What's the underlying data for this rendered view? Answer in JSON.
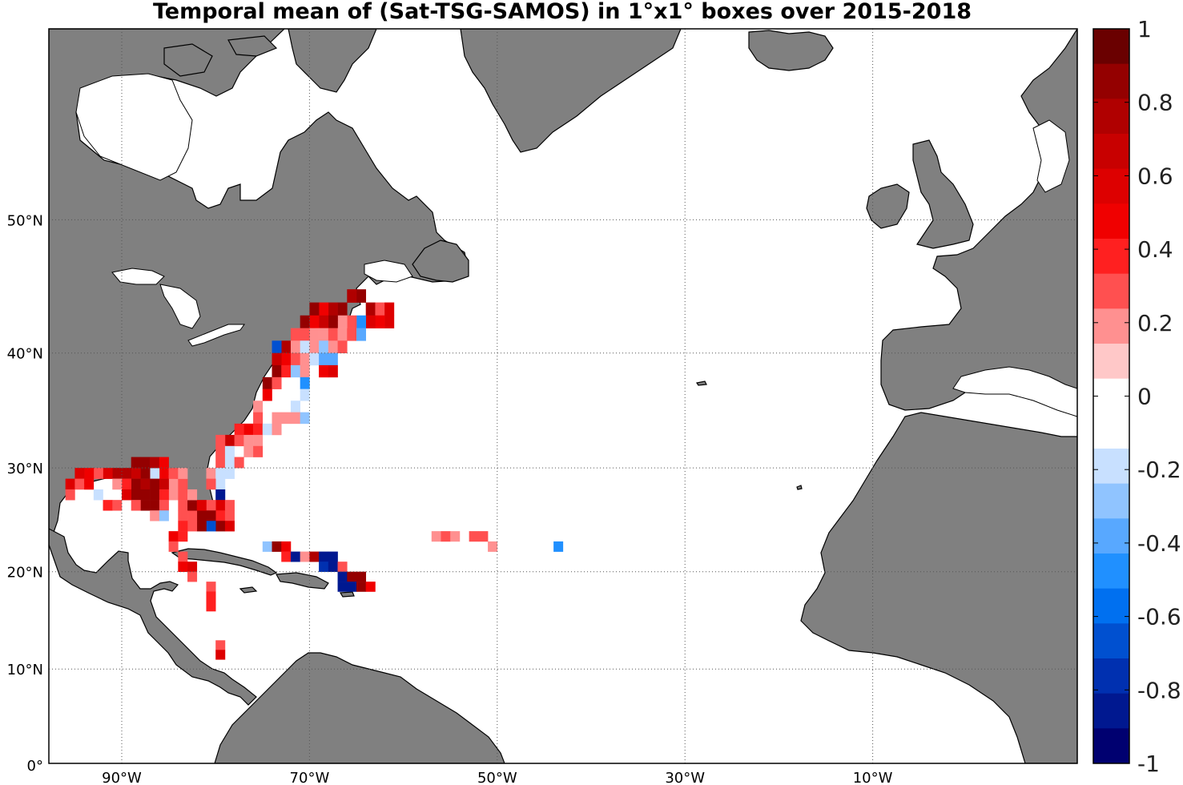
{
  "title": "Temporal mean of (Sat-TSG-SAMOS) in 1°x1° boxes over 2015-2018",
  "colors": {
    "land": "#808080",
    "ocean": "#ffffff",
    "grid": "#555555",
    "coast": "#000000"
  },
  "lon_ticks": [
    {
      "deg": -90,
      "text": "90°W"
    },
    {
      "deg": -70,
      "text": "70°W"
    },
    {
      "deg": -50,
      "text": "50°W"
    },
    {
      "deg": -30,
      "text": "30°W"
    },
    {
      "deg": -10,
      "text": "10°W"
    }
  ],
  "lat_ticks": [
    {
      "deg": 0,
      "text": "0°"
    },
    {
      "deg": 10,
      "text": "10°N"
    },
    {
      "deg": 20,
      "text": "20°N"
    },
    {
      "deg": 30,
      "text": "30°N"
    },
    {
      "deg": 40,
      "text": "40°N"
    },
    {
      "deg": 50,
      "text": "50°N"
    }
  ],
  "colorbar": {
    "min": -1,
    "max": 1,
    "tick_labels": [
      "1",
      "0.8",
      "0.6",
      "0.4",
      "0.2",
      "0",
      "-0.2",
      "-0.4",
      "-0.6",
      "-0.8",
      "-1"
    ],
    "colors_top_to_bottom": [
      "#6a0000",
      "#940000",
      "#b00000",
      "#c80000",
      "#dd0000",
      "#f00000",
      "#ff2020",
      "#ff5050",
      "#ff9090",
      "#ffc8c8",
      "#ffffff",
      "#ffffff",
      "#c8e0ff",
      "#90c4ff",
      "#58a8ff",
      "#2090ff",
      "#0070f0",
      "#0050d0",
      "#0030b0",
      "#001890",
      "#000070"
    ]
  },
  "map_data": {
    "description": "North Atlantic, ~98W to 0E, 0N to ~62N",
    "cells": [
      {
        "lon": -65,
        "lat": 44,
        "v": 0.9
      },
      {
        "lon": -66,
        "lat": 44,
        "v": 0.8
      },
      {
        "lon": -67,
        "lat": 43,
        "v": 0.9
      },
      {
        "lon": -68,
        "lat": 43,
        "v": 0.8
      },
      {
        "lon": -69,
        "lat": 43,
        "v": 0.5
      },
      {
        "lon": -70,
        "lat": 43,
        "v": 0.9
      },
      {
        "lon": -64,
        "lat": 43,
        "v": 0.8
      },
      {
        "lon": -63,
        "lat": 43,
        "v": 0.3
      },
      {
        "lon": -62,
        "lat": 43,
        "v": 0.6
      },
      {
        "lon": -62,
        "lat": 42,
        "v": 0.6
      },
      {
        "lon": -63,
        "lat": 42,
        "v": 0.5
      },
      {
        "lon": -64,
        "lat": 42,
        "v": 0.6
      },
      {
        "lon": -65,
        "lat": 42,
        "v": -0.5
      },
      {
        "lon": -66,
        "lat": 42,
        "v": 0.3
      },
      {
        "lon": -67,
        "lat": 42,
        "v": 0.2
      },
      {
        "lon": -68,
        "lat": 42,
        "v": 0.9
      },
      {
        "lon": -69,
        "lat": 42,
        "v": 0.7
      },
      {
        "lon": -70,
        "lat": 42,
        "v": 0.5
      },
      {
        "lon": -71,
        "lat": 42,
        "v": 0.9
      },
      {
        "lon": -70,
        "lat": 41,
        "v": 0.2
      },
      {
        "lon": -69,
        "lat": 41,
        "v": 0.2
      },
      {
        "lon": -68,
        "lat": 41,
        "v": 0.3
      },
      {
        "lon": -67,
        "lat": 41,
        "v": 0.2
      },
      {
        "lon": -66,
        "lat": 41,
        "v": 0.3
      },
      {
        "lon": -65,
        "lat": 41,
        "v": -0.4
      },
      {
        "lon": -71,
        "lat": 41,
        "v": 0.3
      },
      {
        "lon": -72,
        "lat": 41,
        "v": 0.3
      },
      {
        "lon": -73,
        "lat": 40,
        "v": 0.8
      },
      {
        "lon": -72,
        "lat": 40,
        "v": 0.2
      },
      {
        "lon": -71,
        "lat": 40,
        "v": -0.2
      },
      {
        "lon": -70,
        "lat": 40,
        "v": 0.2
      },
      {
        "lon": -69,
        "lat": 40,
        "v": -0.3
      },
      {
        "lon": -68,
        "lat": 40,
        "v": 0.2
      },
      {
        "lon": -67,
        "lat": 40,
        "v": 0.3
      },
      {
        "lon": -74,
        "lat": 40,
        "v": -0.7
      },
      {
        "lon": -73,
        "lat": 39,
        "v": 0.5
      },
      {
        "lon": -72,
        "lat": 39,
        "v": 0.3
      },
      {
        "lon": -71,
        "lat": 39,
        "v": 0.2
      },
      {
        "lon": -70,
        "lat": 39,
        "v": -0.2
      },
      {
        "lon": -69,
        "lat": 39,
        "v": -0.4
      },
      {
        "lon": -68,
        "lat": 39,
        "v": -0.4
      },
      {
        "lon": -74,
        "lat": 39,
        "v": 0.7
      },
      {
        "lon": -74,
        "lat": 38,
        "v": 0.9
      },
      {
        "lon": -73,
        "lat": 38,
        "v": 0.4
      },
      {
        "lon": -72,
        "lat": 38,
        "v": -0.3
      },
      {
        "lon": -71,
        "lat": 38,
        "v": 0.2
      },
      {
        "lon": -69,
        "lat": 38,
        "v": 0.5
      },
      {
        "lon": -68,
        "lat": 38,
        "v": 0.6
      },
      {
        "lon": -75,
        "lat": 37,
        "v": 0.9
      },
      {
        "lon": -74,
        "lat": 37,
        "v": 0.3
      },
      {
        "lon": -71,
        "lat": 37,
        "v": -0.5
      },
      {
        "lon": -75,
        "lat": 36,
        "v": 0.5
      },
      {
        "lon": -71,
        "lat": 36,
        "v": -0.2
      },
      {
        "lon": -76,
        "lat": 35,
        "v": 0.2
      },
      {
        "lon": -72,
        "lat": 35,
        "v": -0.2
      },
      {
        "lon": -76,
        "lat": 34,
        "v": 0.3
      },
      {
        "lon": -74,
        "lat": 34,
        "v": 0.2
      },
      {
        "lon": -73,
        "lat": 34,
        "v": 0.2
      },
      {
        "lon": -72,
        "lat": 34,
        "v": 0.2
      },
      {
        "lon": -71,
        "lat": 34,
        "v": -0.3
      },
      {
        "lon": -77,
        "lat": 33,
        "v": 0.5
      },
      {
        "lon": -76,
        "lat": 33,
        "v": 0.4
      },
      {
        "lon": -78,
        "lat": 33,
        "v": 0.4
      },
      {
        "lon": -75,
        "lat": 33,
        "v": -0.2
      },
      {
        "lon": -74,
        "lat": 33,
        "v": 0.2
      },
      {
        "lon": -79,
        "lat": 32,
        "v": 0.7
      },
      {
        "lon": -78,
        "lat": 32,
        "v": 0.3
      },
      {
        "lon": -77,
        "lat": 32,
        "v": 0.2
      },
      {
        "lon": -76,
        "lat": 32,
        "v": 0.2
      },
      {
        "lon": -80,
        "lat": 32,
        "v": 0.3
      },
      {
        "lon": -80,
        "lat": 31,
        "v": 0.3
      },
      {
        "lon": -79,
        "lat": 31,
        "v": -0.2
      },
      {
        "lon": -77,
        "lat": 31,
        "v": 0.2
      },
      {
        "lon": -76,
        "lat": 31,
        "v": 0.3
      },
      {
        "lon": -80,
        "lat": 30,
        "v": 0.3
      },
      {
        "lon": -79,
        "lat": 30,
        "v": -0.2
      },
      {
        "lon": -78,
        "lat": 30,
        "v": 0.3
      },
      {
        "lon": -79,
        "lat": 29,
        "v": -0.2
      },
      {
        "lon": -81,
        "lat": 29,
        "v": 0.2
      },
      {
        "lon": -80,
        "lat": 29,
        "v": -0.2
      },
      {
        "lon": -80,
        "lat": 28,
        "v": -0.2
      },
      {
        "lon": -81,
        "lat": 28,
        "v": 0.3
      },
      {
        "lon": -80,
        "lat": 27,
        "v": -0.9
      },
      {
        "lon": -80,
        "lat": 26,
        "v": 0.6
      },
      {
        "lon": -81,
        "lat": 26,
        "v": 0.3
      },
      {
        "lon": -79,
        "lat": 26,
        "v": 0.3
      },
      {
        "lon": -80,
        "lat": 25,
        "v": 0.4
      },
      {
        "lon": -81,
        "lat": 25,
        "v": 0.9
      },
      {
        "lon": -82,
        "lat": 25,
        "v": 0.9
      },
      {
        "lon": -79,
        "lat": 25,
        "v": 0.3
      },
      {
        "lon": -80,
        "lat": 24,
        "v": 0.9
      },
      {
        "lon": -81,
        "lat": 24,
        "v": -0.7
      },
      {
        "lon": -82,
        "lat": 24,
        "v": 0.9
      },
      {
        "lon": -83,
        "lat": 24,
        "v": 0.3
      },
      {
        "lon": -79,
        "lat": 24,
        "v": 0.6
      },
      {
        "lon": -83,
        "lat": 25,
        "v": 0.3
      },
      {
        "lon": -84,
        "lat": 26,
        "v": 0.3
      },
      {
        "lon": -83,
        "lat": 26,
        "v": 0.9
      },
      {
        "lon": -82,
        "lat": 26,
        "v": 0.6
      },
      {
        "lon": -85,
        "lat": 27,
        "v": 0.2
      },
      {
        "lon": -84,
        "lat": 27,
        "v": 0.3
      },
      {
        "lon": -83,
        "lat": 27,
        "v": 0.2
      },
      {
        "lon": -85,
        "lat": 28,
        "v": 0.2
      },
      {
        "lon": -84,
        "lat": 28,
        "v": 0.3
      },
      {
        "lon": -86,
        "lat": 29,
        "v": 0.5
      },
      {
        "lon": -85,
        "lat": 29,
        "v": 0.3
      },
      {
        "lon": -84,
        "lat": 29,
        "v": 0.2
      },
      {
        "lon": -87,
        "lat": 29,
        "v": -0.2
      },
      {
        "lon": -88,
        "lat": 29,
        "v": 0.9
      },
      {
        "lon": -89,
        "lat": 29,
        "v": 0.7
      },
      {
        "lon": -90,
        "lat": 29,
        "v": 0.8
      },
      {
        "lon": -91,
        "lat": 29,
        "v": 0.8
      },
      {
        "lon": -92,
        "lat": 29,
        "v": 0.6
      },
      {
        "lon": -93,
        "lat": 29,
        "v": 0.3
      },
      {
        "lon": -94,
        "lat": 29,
        "v": 0.5
      },
      {
        "lon": -95,
        "lat": 29,
        "v": 0.6
      },
      {
        "lon": -88,
        "lat": 30,
        "v": 0.9
      },
      {
        "lon": -89,
        "lat": 30,
        "v": 0.9
      },
      {
        "lon": -87,
        "lat": 30,
        "v": 0.8
      },
      {
        "lon": -86,
        "lat": 30,
        "v": 0.5
      },
      {
        "lon": -96,
        "lat": 28,
        "v": 0.6
      },
      {
        "lon": -95,
        "lat": 28,
        "v": 0.3
      },
      {
        "lon": -96,
        "lat": 27,
        "v": 0.3
      },
      {
        "lon": -94,
        "lat": 28,
        "v": 0.5
      },
      {
        "lon": -89,
        "lat": 28,
        "v": 0.9
      },
      {
        "lon": -88,
        "lat": 28,
        "v": 0.8
      },
      {
        "lon": -87,
        "lat": 28,
        "v": 0.9
      },
      {
        "lon": -86,
        "lat": 28,
        "v": 0.7
      },
      {
        "lon": -90,
        "lat": 28,
        "v": 0.4
      },
      {
        "lon": -91,
        "lat": 28,
        "v": 0.2
      },
      {
        "lon": -89,
        "lat": 27,
        "v": 0.9
      },
      {
        "lon": -88,
        "lat": 27,
        "v": 0.9
      },
      {
        "lon": -87,
        "lat": 27,
        "v": 0.9
      },
      {
        "lon": -90,
        "lat": 27,
        "v": 0.6
      },
      {
        "lon": -86,
        "lat": 27,
        "v": 0.4
      },
      {
        "lon": -88,
        "lat": 26,
        "v": 0.9
      },
      {
        "lon": -87,
        "lat": 26,
        "v": 0.9
      },
      {
        "lon": -89,
        "lat": 26,
        "v": 0.3
      },
      {
        "lon": -86,
        "lat": 26,
        "v": 0.3
      },
      {
        "lon": -93,
        "lat": 27,
        "v": -0.2
      },
      {
        "lon": -92,
        "lat": 26,
        "v": 0.4
      },
      {
        "lon": -91,
        "lat": 26,
        "v": 0.3
      },
      {
        "lon": -87,
        "lat": 25,
        "v": 0.2
      },
      {
        "lon": -86,
        "lat": 25,
        "v": -0.3
      },
      {
        "lon": -84,
        "lat": 25,
        "v": 0.3
      },
      {
        "lon": -84,
        "lat": 24,
        "v": 0.4
      },
      {
        "lon": -85,
        "lat": 23,
        "v": 0.5
      },
      {
        "lon": -84,
        "lat": 23,
        "v": 0.4
      },
      {
        "lon": -85,
        "lat": 22,
        "v": 0.3
      },
      {
        "lon": -84,
        "lat": 21,
        "v": 0.3
      },
      {
        "lon": -84,
        "lat": 20,
        "v": 0.5
      },
      {
        "lon": -83,
        "lat": 20,
        "v": 0.6
      },
      {
        "lon": -83,
        "lat": 19,
        "v": 0.3
      },
      {
        "lon": -81,
        "lat": 18,
        "v": 0.3
      },
      {
        "lon": -81,
        "lat": 17,
        "v": 0.4
      },
      {
        "lon": -81,
        "lat": 16,
        "v": 0.4
      },
      {
        "lon": -80,
        "lat": 12,
        "v": 0.3
      },
      {
        "lon": -80,
        "lat": 11,
        "v": 0.6
      },
      {
        "lon": -75,
        "lat": 22,
        "v": -0.3
      },
      {
        "lon": -74,
        "lat": 22,
        "v": 0.9
      },
      {
        "lon": -73,
        "lat": 22,
        "v": 0.5
      },
      {
        "lon": -73,
        "lat": 21,
        "v": 0.4
      },
      {
        "lon": -72,
        "lat": 21,
        "v": -0.9
      },
      {
        "lon": -71,
        "lat": 21,
        "v": 0.2
      },
      {
        "lon": -70,
        "lat": 21,
        "v": 0.8
      },
      {
        "lon": -69,
        "lat": 21,
        "v": -0.9
      },
      {
        "lon": -68,
        "lat": 21,
        "v": -0.9
      },
      {
        "lon": -69,
        "lat": 20,
        "v": -0.8
      },
      {
        "lon": -68,
        "lat": 20,
        "v": -0.9
      },
      {
        "lon": -67,
        "lat": 20,
        "v": 0.3
      },
      {
        "lon": -67,
        "lat": 19,
        "v": -0.9
      },
      {
        "lon": -66,
        "lat": 19,
        "v": 0.9
      },
      {
        "lon": -65,
        "lat": 19,
        "v": 0.9
      },
      {
        "lon": -67,
        "lat": 18,
        "v": -0.9
      },
      {
        "lon": -66,
        "lat": 18,
        "v": -0.9
      },
      {
        "lon": -65,
        "lat": 18,
        "v": 0.9
      },
      {
        "lon": -64,
        "lat": 18,
        "v": 0.5
      },
      {
        "lon": -57,
        "lat": 23,
        "v": 0.2
      },
      {
        "lon": -56,
        "lat": 23,
        "v": 0.3
      },
      {
        "lon": -55,
        "lat": 23,
        "v": 0.2
      },
      {
        "lon": -53,
        "lat": 23,
        "v": 0.3
      },
      {
        "lon": -52,
        "lat": 23,
        "v": 0.3
      },
      {
        "lon": -51,
        "lat": 22,
        "v": 0.2
      },
      {
        "lon": -44,
        "lat": 22,
        "v": -0.5
      }
    ]
  }
}
